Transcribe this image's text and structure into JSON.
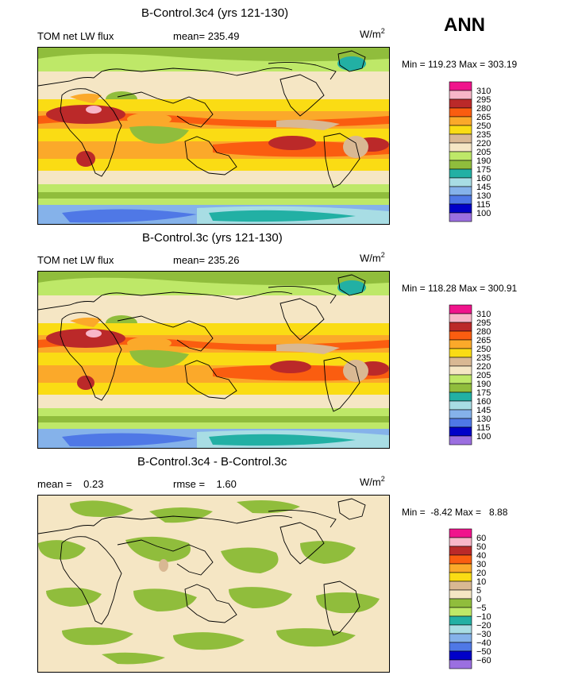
{
  "season": "ANN",
  "colors": {
    "c100": "#9b6fe0",
    "c115": "#0000c8",
    "c130": "#4f78e6",
    "c145": "#85b2ea",
    "c160": "#a8dde4",
    "c175": "#22b0a4",
    "c190": "#90bd3c",
    "c205": "#bee868",
    "c220": "#f5e6c4",
    "c235": "#d9b893",
    "c250": "#fadc14",
    "c265": "#fba92a",
    "c280": "#fa5d10",
    "c295": "#bb2929",
    "c310": "#f8b6c8",
    "ctop": "#f0148c"
  },
  "panels": [
    {
      "title": "B-Control.3c4 (yrs 121-130)",
      "left_label": "TOM net LW flux",
      "mean_label": "mean= 235.49",
      "units": "W/m",
      "units_exp": "2",
      "minmax": "Min = 119.23 Max = 303.19",
      "colorbar": {
        "labels": [
          "310",
          "295",
          "280",
          "265",
          "250",
          "235",
          "220",
          "205",
          "190",
          "175",
          "160",
          "145",
          "130",
          "115",
          "100"
        ],
        "colors": [
          "#f0148c",
          "#f8b6c8",
          "#bb2929",
          "#fa5d10",
          "#fba92a",
          "#fadc14",
          "#d9b893",
          "#f5e6c4",
          "#bee868",
          "#90bd3c",
          "#22b0a4",
          "#a8dde4",
          "#85b2ea",
          "#4f78e6",
          "#0000c8",
          "#9b6fe0"
        ]
      }
    },
    {
      "title": "B-Control.3c (yrs 121-130)",
      "left_label": "TOM net LW flux",
      "mean_label": "mean= 235.26",
      "units": "W/m",
      "units_exp": "2",
      "minmax": "Min = 118.28 Max = 300.91",
      "colorbar": {
        "labels": [
          "310",
          "295",
          "280",
          "265",
          "250",
          "235",
          "220",
          "205",
          "190",
          "175",
          "160",
          "145",
          "130",
          "115",
          "100"
        ],
        "colors": [
          "#f0148c",
          "#f8b6c8",
          "#bb2929",
          "#fa5d10",
          "#fba92a",
          "#fadc14",
          "#d9b893",
          "#f5e6c4",
          "#bee868",
          "#90bd3c",
          "#22b0a4",
          "#a8dde4",
          "#85b2ea",
          "#4f78e6",
          "#0000c8",
          "#9b6fe0"
        ]
      }
    },
    {
      "title": "B-Control.3c4 - B-Control.3c",
      "left_label": "mean =    0.23",
      "mean_label": "rmse =    1.60",
      "units": "W/m",
      "units_exp": "2",
      "minmax": "Min =  -8.42 Max =   8.88",
      "colorbar": {
        "labels": [
          "60",
          "50",
          "40",
          "30",
          "20",
          "10",
          "5",
          "0",
          "−5",
          "−10",
          "−20",
          "−30",
          "−40",
          "−50",
          "−60"
        ],
        "colors": [
          "#f0148c",
          "#f8b6c8",
          "#bb2929",
          "#fa5d10",
          "#fba92a",
          "#fadc14",
          "#d9b893",
          "#f5e6c4",
          "#90bd3c",
          "#bee868",
          "#22b0a4",
          "#a8dde4",
          "#85b2ea",
          "#4f78e6",
          "#0000c8",
          "#9b6fe0"
        ]
      }
    }
  ]
}
